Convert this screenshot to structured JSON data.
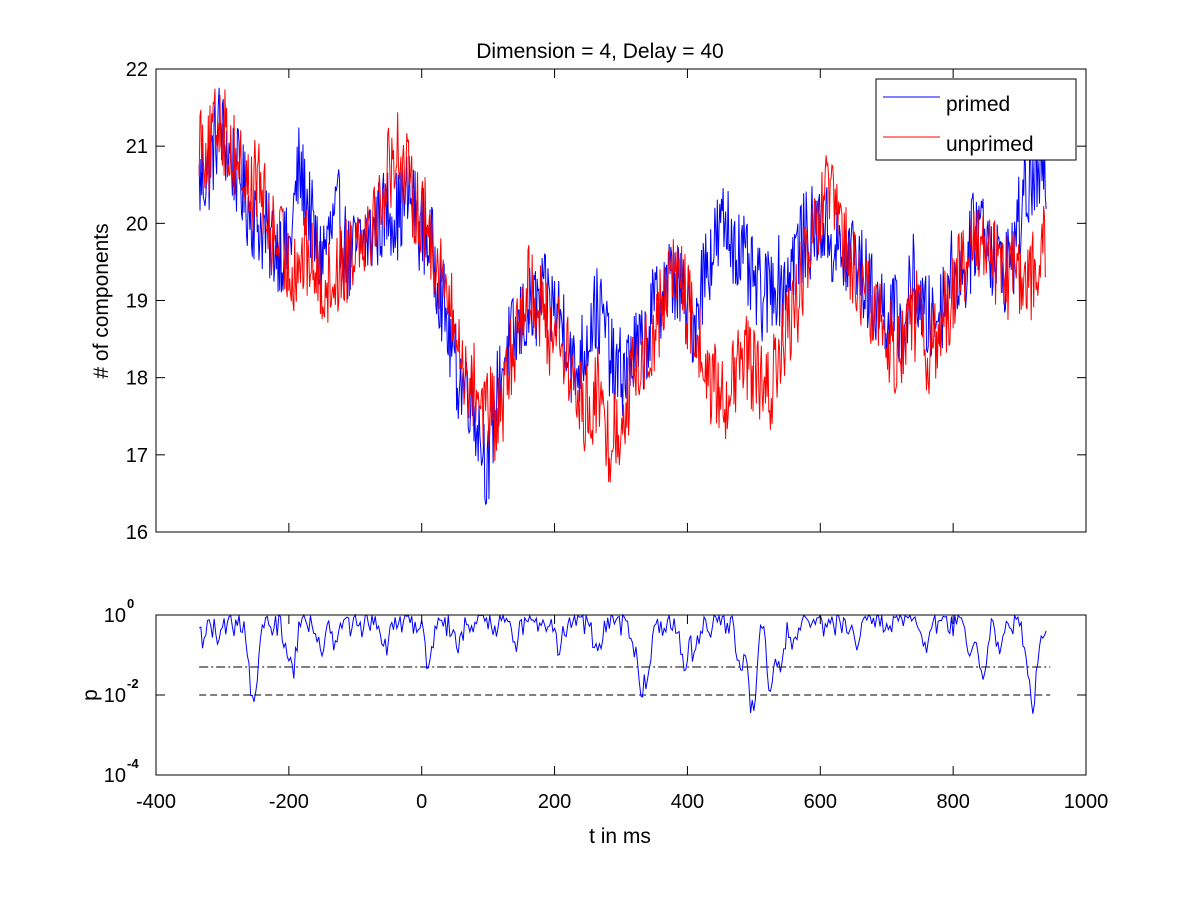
{
  "chart_data": [
    {
      "type": "line",
      "title": "Dimension  = 4, Delay = 40",
      "xlabel": "",
      "ylabel": "# of components",
      "xlim": [
        -400,
        1000
      ],
      "ylim": [
        16,
        22
      ],
      "y_ticks": [
        "16",
        "17",
        "18",
        "19",
        "20",
        "21",
        "22"
      ],
      "x_tick_labels_shown": false,
      "legend_position": "top-right",
      "x_range": [
        -335,
        940
      ],
      "sample_step": 5,
      "series": [
        {
          "name": "primed",
          "color": "#0000ff",
          "waypoints": [
            [
              -335,
              20.5
            ],
            [
              -320,
              20.7
            ],
            [
              -305,
              21.3
            ],
            [
              -290,
              20.9
            ],
            [
              -275,
              20.6
            ],
            [
              -260,
              20.2
            ],
            [
              -245,
              20.0
            ],
            [
              -230,
              19.8
            ],
            [
              -215,
              19.7
            ],
            [
              -200,
              19.6
            ],
            [
              -185,
              20.7
            ],
            [
              -170,
              20.2
            ],
            [
              -155,
              19.5
            ],
            [
              -140,
              19.8
            ],
            [
              -125,
              20.1
            ],
            [
              -110,
              19.5
            ],
            [
              -95,
              19.7
            ],
            [
              -80,
              19.8
            ],
            [
              -65,
              20.0
            ],
            [
              -50,
              20.2
            ],
            [
              -35,
              20.1
            ],
            [
              -20,
              20.4
            ],
            [
              -5,
              20.0
            ],
            [
              10,
              19.8
            ],
            [
              25,
              19.3
            ],
            [
              40,
              18.6
            ],
            [
              55,
              18.0
            ],
            [
              70,
              17.9
            ],
            [
              85,
              17.4
            ],
            [
              100,
              16.8
            ],
            [
              110,
              17.6
            ],
            [
              125,
              18.3
            ],
            [
              140,
              18.5
            ],
            [
              155,
              18.8
            ],
            [
              170,
              18.9
            ],
            [
              185,
              19.0
            ],
            [
              200,
              18.9
            ],
            [
              215,
              18.7
            ],
            [
              230,
              18.0
            ],
            [
              245,
              18.4
            ],
            [
              260,
              18.9
            ],
            [
              275,
              18.7
            ],
            [
              290,
              18.0
            ],
            [
              305,
              18.1
            ],
            [
              320,
              18.3
            ],
            [
              335,
              18.4
            ],
            [
              350,
              18.9
            ],
            [
              365,
              19.2
            ],
            [
              380,
              19.3
            ],
            [
              395,
              19.0
            ],
            [
              410,
              18.7
            ],
            [
              425,
              19.4
            ],
            [
              440,
              19.7
            ],
            [
              455,
              20.0
            ],
            [
              470,
              19.8
            ],
            [
              485,
              19.5
            ],
            [
              500,
              19.2
            ],
            [
              515,
              19.0
            ],
            [
              530,
              19.3
            ],
            [
              545,
              19.2
            ],
            [
              560,
              19.6
            ],
            [
              575,
              19.8
            ],
            [
              590,
              19.9
            ],
            [
              605,
              20.0
            ],
            [
              620,
              19.7
            ],
            [
              635,
              19.5
            ],
            [
              650,
              19.7
            ],
            [
              665,
              19.3
            ],
            [
              680,
              19.0
            ],
            [
              695,
              18.9
            ],
            [
              710,
              18.8
            ],
            [
              725,
              18.6
            ],
            [
              740,
              19.3
            ],
            [
              755,
              18.8
            ],
            [
              770,
              18.7
            ],
            [
              785,
              19.0
            ],
            [
              800,
              19.4
            ],
            [
              815,
              19.3
            ],
            [
              830,
              19.8
            ],
            [
              845,
              20.1
            ],
            [
              860,
              19.6
            ],
            [
              875,
              19.4
            ],
            [
              890,
              19.6
            ],
            [
              905,
              20.3
            ],
            [
              920,
              20.6
            ],
            [
              940,
              20.5
            ]
          ]
        },
        {
          "name": "unprimed",
          "color": "#ff0000",
          "waypoints": [
            [
              -335,
              21.2
            ],
            [
              -320,
              20.9
            ],
            [
              -305,
              21.4
            ],
            [
              -290,
              21.0
            ],
            [
              -275,
              20.8
            ],
            [
              -260,
              20.4
            ],
            [
              -245,
              20.6
            ],
            [
              -230,
              19.9
            ],
            [
              -215,
              19.8
            ],
            [
              -200,
              19.4
            ],
            [
              -185,
              19.5
            ],
            [
              -170,
              19.6
            ],
            [
              -155,
              19.3
            ],
            [
              -140,
              19.2
            ],
            [
              -125,
              19.4
            ],
            [
              -110,
              19.6
            ],
            [
              -95,
              19.9
            ],
            [
              -80,
              20.0
            ],
            [
              -65,
              20.2
            ],
            [
              -50,
              20.7
            ],
            [
              -35,
              21.0
            ],
            [
              -20,
              20.5
            ],
            [
              -5,
              20.2
            ],
            [
              10,
              19.9
            ],
            [
              25,
              19.5
            ],
            [
              40,
              19.0
            ],
            [
              55,
              18.4
            ],
            [
              70,
              18.0
            ],
            [
              85,
              17.8
            ],
            [
              100,
              17.6
            ],
            [
              115,
              17.4
            ],
            [
              130,
              18.0
            ],
            [
              145,
              18.7
            ],
            [
              160,
              19.2
            ],
            [
              175,
              19.0
            ],
            [
              190,
              18.6
            ],
            [
              205,
              18.7
            ],
            [
              220,
              18.2
            ],
            [
              235,
              17.7
            ],
            [
              250,
              17.6
            ],
            [
              265,
              17.8
            ],
            [
              280,
              17.2
            ],
            [
              295,
              17.3
            ],
            [
              310,
              17.8
            ],
            [
              325,
              18.1
            ],
            [
              340,
              18.4
            ],
            [
              355,
              18.7
            ],
            [
              370,
              19.2
            ],
            [
              385,
              19.5
            ],
            [
              400,
              18.9
            ],
            [
              415,
              18.5
            ],
            [
              430,
              18.0
            ],
            [
              445,
              17.8
            ],
            [
              460,
              17.8
            ],
            [
              475,
              18.0
            ],
            [
              490,
              18.3
            ],
            [
              505,
              18.0
            ],
            [
              520,
              17.7
            ],
            [
              535,
              18.2
            ],
            [
              550,
              18.6
            ],
            [
              565,
              19.0
            ],
            [
              580,
              19.5
            ],
            [
              595,
              19.9
            ],
            [
              610,
              20.4
            ],
            [
              625,
              20.1
            ],
            [
              640,
              19.6
            ],
            [
              655,
              19.2
            ],
            [
              670,
              19.0
            ],
            [
              685,
              18.9
            ],
            [
              700,
              18.5
            ],
            [
              715,
              18.3
            ],
            [
              730,
              18.7
            ],
            [
              745,
              18.8
            ],
            [
              760,
              18.3
            ],
            [
              775,
              18.5
            ],
            [
              790,
              18.9
            ],
            [
              805,
              19.3
            ],
            [
              820,
              19.4
            ],
            [
              835,
              19.7
            ],
            [
              850,
              19.9
            ],
            [
              865,
              19.4
            ],
            [
              880,
              19.3
            ],
            [
              895,
              19.4
            ],
            [
              910,
              19.1
            ],
            [
              925,
              19.5
            ],
            [
              940,
              19.7
            ]
          ]
        }
      ]
    },
    {
      "type": "line",
      "title": "",
      "xlabel": "t in ms",
      "ylabel": "p",
      "xlim": [
        -400,
        1000
      ],
      "ylim_log10": [
        -4,
        0
      ],
      "y_scale": "log",
      "y_tick_base": "10",
      "y_tick_exponents": [
        "0",
        "-2",
        "-4"
      ],
      "x_ticks": [
        "-400",
        "-200",
        "0",
        "200",
        "400",
        "600",
        "800",
        "1000"
      ],
      "x_range": [
        -335,
        940
      ],
      "sample_step": 2.5,
      "reference_lines": [
        {
          "style": "dash-dot",
          "p": 0.05
        },
        {
          "style": "dashed",
          "p": 0.01
        }
      ],
      "series": [
        {
          "color": "#0000ff",
          "dips_log10": [
            [
              -330,
              -0.35
            ],
            [
              -305,
              -0.3
            ],
            [
              -255,
              -2.0
            ],
            [
              -250,
              -1.6
            ],
            [
              -200,
              -0.9
            ],
            [
              -195,
              -1.2
            ],
            [
              -150,
              -0.8
            ],
            [
              -130,
              -0.6
            ],
            [
              -55,
              -0.6
            ],
            [
              10,
              -1.1
            ],
            [
              55,
              -0.55
            ],
            [
              140,
              -0.5
            ],
            [
              205,
              -0.55
            ],
            [
              265,
              -0.8
            ],
            [
              320,
              -0.8
            ],
            [
              330,
              -1.8
            ],
            [
              340,
              -1.5
            ],
            [
              395,
              -1.15
            ],
            [
              410,
              -0.85
            ],
            [
              480,
              -1.3
            ],
            [
              495,
              -1.95
            ],
            [
              500,
              -2.2
            ],
            [
              525,
              -1.9
            ],
            [
              540,
              -1.3
            ],
            [
              560,
              -0.6
            ],
            [
              655,
              -0.55
            ],
            [
              760,
              -0.65
            ],
            [
              825,
              -1.0
            ],
            [
              845,
              -1.6
            ],
            [
              870,
              -0.7
            ],
            [
              915,
              -1.4
            ],
            [
              920,
              -2.35
            ],
            [
              935,
              -0.6
            ]
          ]
        }
      ]
    }
  ]
}
